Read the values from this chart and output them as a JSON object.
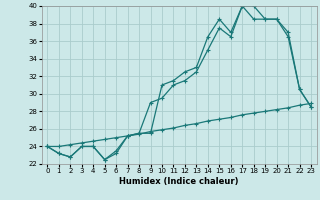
{
  "title": "",
  "xlabel": "Humidex (Indice chaleur)",
  "background_color": "#cce8e8",
  "grid_color": "#aacccc",
  "line_color": "#1a7878",
  "xlim": [
    -0.5,
    23.5
  ],
  "ylim": [
    22,
    40
  ],
  "xticks": [
    0,
    1,
    2,
    3,
    4,
    5,
    6,
    7,
    8,
    9,
    10,
    11,
    12,
    13,
    14,
    15,
    16,
    17,
    18,
    19,
    20,
    21,
    22,
    23
  ],
  "yticks": [
    22,
    24,
    26,
    28,
    30,
    32,
    34,
    36,
    38,
    40
  ],
  "series1_x": [
    0,
    1,
    2,
    3,
    4,
    5,
    6,
    7,
    8,
    9,
    10,
    11,
    12,
    13,
    14,
    15,
    16,
    17,
    18,
    19,
    20,
    21,
    22,
    23
  ],
  "series1_y": [
    24.0,
    23.2,
    22.8,
    24.0,
    24.0,
    22.5,
    23.2,
    25.2,
    25.5,
    25.5,
    31.0,
    31.5,
    32.5,
    33.0,
    36.5,
    38.5,
    37.0,
    40.0,
    40.0,
    38.5,
    38.5,
    37.0,
    30.5,
    28.5
  ],
  "series2_x": [
    0,
    1,
    2,
    3,
    4,
    5,
    6,
    7,
    8,
    9,
    10,
    11,
    12,
    13,
    14,
    15,
    16,
    17,
    18,
    19,
    20,
    21,
    22,
    23
  ],
  "series2_y": [
    24.0,
    23.2,
    22.8,
    24.0,
    24.0,
    22.5,
    23.5,
    25.2,
    25.5,
    29.0,
    29.5,
    31.0,
    31.5,
    32.5,
    35.0,
    37.5,
    36.5,
    40.0,
    38.5,
    38.5,
    38.5,
    36.5,
    30.5,
    28.5
  ],
  "series3_x": [
    0,
    1,
    2,
    3,
    4,
    5,
    6,
    7,
    8,
    9,
    10,
    11,
    12,
    13,
    14,
    15,
    16,
    17,
    18,
    19,
    20,
    21,
    22,
    23
  ],
  "series3_y": [
    24.0,
    24.0,
    24.2,
    24.4,
    24.6,
    24.8,
    25.0,
    25.2,
    25.4,
    25.7,
    25.9,
    26.1,
    26.4,
    26.6,
    26.9,
    27.1,
    27.3,
    27.6,
    27.8,
    28.0,
    28.2,
    28.4,
    28.7,
    28.9
  ]
}
